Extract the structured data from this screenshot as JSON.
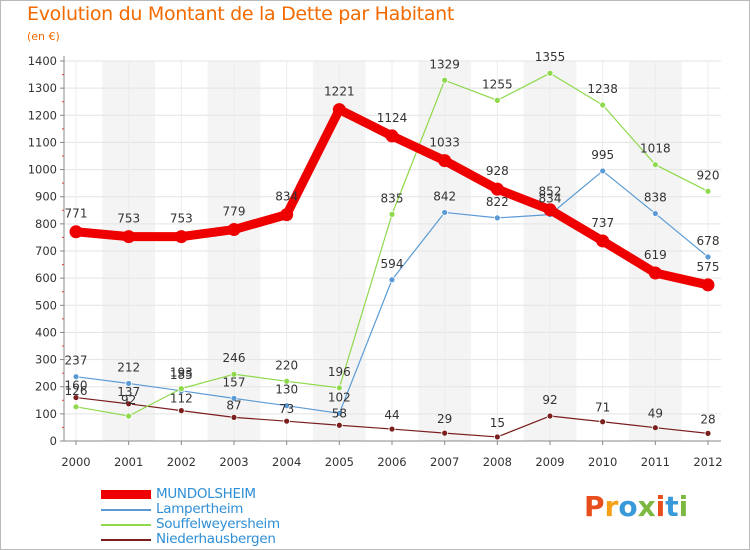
{
  "title": "Evolution du Montant de la Dette par Habitant",
  "unit_label": "(en €)",
  "logo": {
    "text": "Proxiti",
    "letters": [
      "P",
      "r",
      "o",
      "x",
      "i",
      "t",
      "i"
    ],
    "colors": [
      "#e84d1c",
      "#f6a01a",
      "#3a9ad9",
      "#7cb943",
      "#e84d1c",
      "#3a9ad9",
      "#7cb943"
    ]
  },
  "chart_data": {
    "type": "line",
    "x": [
      "2000",
      "2001",
      "2002",
      "2003",
      "2004",
      "2005",
      "2006",
      "2007",
      "2008",
      "2009",
      "2010",
      "2011",
      "2012"
    ],
    "ylim": [
      0,
      1400
    ],
    "yticks": [
      0,
      100,
      200,
      300,
      400,
      500,
      600,
      700,
      800,
      900,
      1000,
      1100,
      1200,
      1300,
      1400
    ],
    "grid": true,
    "legend_placement": "bottom-left",
    "series": [
      {
        "name": "MUNDOLSHEIM",
        "color": "#ee0000",
        "width": 9,
        "values": [
          771,
          753,
          753,
          779,
          834,
          1221,
          1124,
          1033,
          928,
          852,
          737,
          619,
          575
        ],
        "labels": [
          "771",
          "753",
          "753",
          "779",
          "834",
          "1221",
          "1124",
          "1033",
          "928",
          "852",
          "737",
          "619",
          "575"
        ]
      },
      {
        "name": "Lampertheim",
        "color": "#5b9bd5",
        "width": 1.2,
        "values": [
          237,
          212,
          185,
          157,
          130,
          102,
          594,
          842,
          822,
          834,
          995,
          838,
          678
        ],
        "labels": [
          "237",
          "212",
          "185",
          "157",
          "130",
          "102",
          "594",
          "842",
          "822",
          "834",
          "995",
          "838",
          "678"
        ]
      },
      {
        "name": "Souffelweyersheim",
        "color": "#8ed94c",
        "width": 1.2,
        "values": [
          126,
          92,
          193,
          246,
          220,
          196,
          835,
          1329,
          1255,
          1355,
          1238,
          1018,
          920
        ],
        "labels": [
          "126",
          "92",
          "193",
          "246",
          "220",
          "196",
          "835",
          "1329",
          "1255",
          "1355",
          "1238",
          "1018",
          "920"
        ]
      },
      {
        "name": "Niederhausbergen",
        "color": "#7a1e1e",
        "width": 1.2,
        "values": [
          160,
          137,
          112,
          87,
          73,
          58,
          44,
          29,
          15,
          92,
          71,
          49,
          28
        ],
        "labels": [
          "160",
          "137",
          "112",
          "87",
          "73",
          "58",
          "44",
          "29",
          "15",
          "92",
          "71",
          "49",
          "28"
        ]
      }
    ]
  }
}
